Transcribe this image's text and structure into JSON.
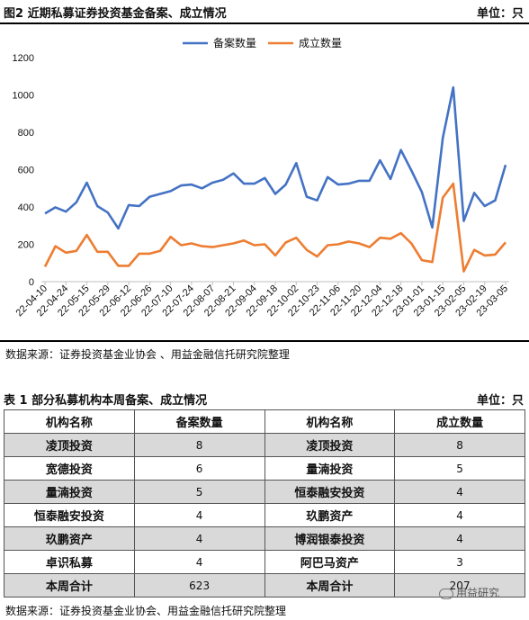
{
  "figure": {
    "title": "图2  近期私募证券投资基金备案、成立情况",
    "unit": "单位：只",
    "source": "数据来源：证券投资基金业协会 、用益金融信托研究院整理"
  },
  "chart_data": {
    "type": "line",
    "x_ticks": [
      "22-04-10",
      "22-04-24",
      "22-05-15",
      "22-05-29",
      "22-06-12",
      "22-06-26",
      "22-07-10",
      "22-07-24",
      "22-08-07",
      "22-08-21",
      "22-09-04",
      "22-09-18",
      "22-10-02",
      "22-10-23",
      "22-11-06",
      "22-11-20",
      "22-12-04",
      "22-12-18",
      "23-01-01",
      "23-01-15",
      "23-02-05",
      "23-02-19",
      "23-03-05"
    ],
    "ylim": [
      0,
      1200
    ],
    "yticks": [
      0,
      200,
      400,
      600,
      800,
      1000,
      1200
    ],
    "legend_position": "top-center",
    "series": [
      {
        "name": "备案数量",
        "color": "#4472C4",
        "values": [
          365,
          398,
          375,
          425,
          530,
          405,
          370,
          285,
          410,
          405,
          455,
          470,
          485,
          515,
          520,
          500,
          530,
          545,
          580,
          525,
          525,
          555,
          470,
          520,
          635,
          455,
          435,
          560,
          520,
          525,
          540,
          540,
          650,
          550,
          705,
          595,
          480,
          290,
          770,
          1040,
          325,
          475,
          405,
          435,
          625
        ]
      },
      {
        "name": "成立数量",
        "color": "#ED7D31",
        "values": [
          80,
          190,
          155,
          165,
          250,
          160,
          160,
          85,
          85,
          150,
          150,
          165,
          240,
          195,
          205,
          190,
          185,
          195,
          205,
          220,
          195,
          200,
          140,
          210,
          235,
          170,
          135,
          195,
          200,
          215,
          205,
          185,
          235,
          230,
          260,
          205,
          115,
          105,
          450,
          525,
          55,
          170,
          140,
          145,
          210
        ]
      }
    ]
  },
  "table": {
    "title": "表 1  部分私募机构本周备案、成立情况",
    "unit": "单位：只",
    "headers": [
      "机构名称",
      "备案数量",
      "机构名称",
      "成立数量"
    ],
    "rows": [
      [
        "凌顶投资",
        "8",
        "凌顶投资",
        "8"
      ],
      [
        "宽德投资",
        "6",
        "量湳投资",
        "5"
      ],
      [
        "量湳投资",
        "5",
        "恒泰融安投资",
        "4"
      ],
      [
        "恒泰融安投资",
        "4",
        "玖鹏资产",
        "4"
      ],
      [
        "玖鹏资产",
        "4",
        "博润银泰投资",
        "4"
      ],
      [
        "卓识私募",
        "4",
        "阿巴马资产",
        "3"
      ],
      [
        "本周合计",
        "623",
        "本周合计",
        "207"
      ]
    ],
    "source": "数据来源：证券投资基金业协会、用益金融信托研究院整理"
  },
  "watermark": "用益研究"
}
